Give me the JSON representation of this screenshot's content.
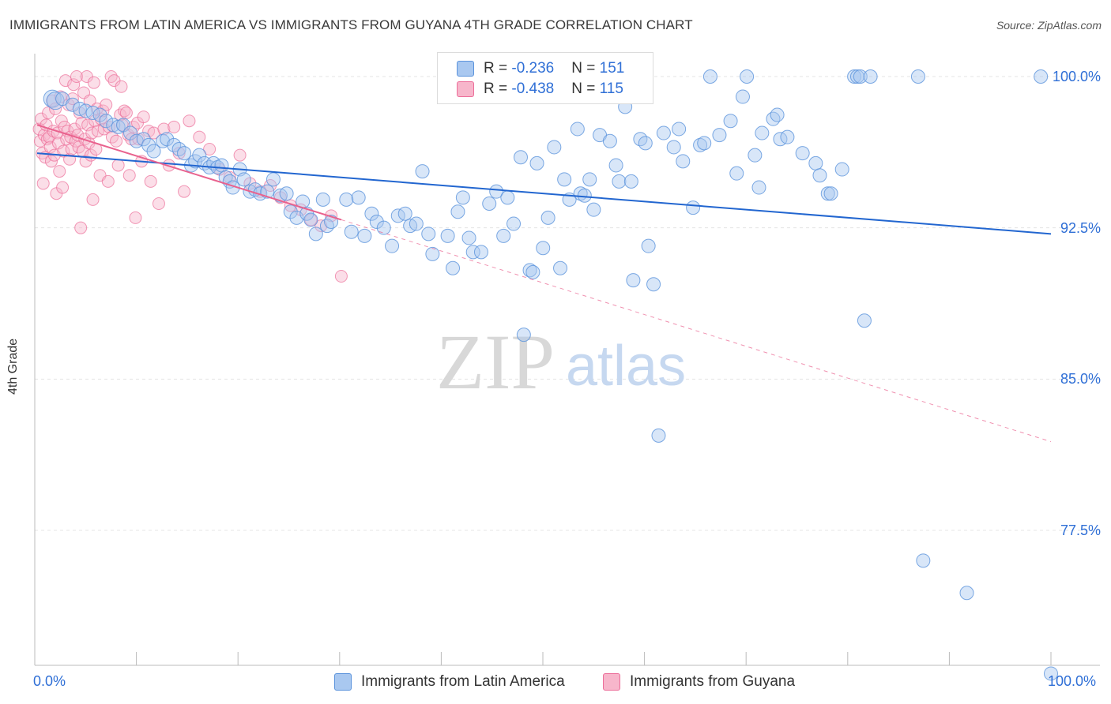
{
  "title": "IMMIGRANTS FROM LATIN AMERICA VS IMMIGRANTS FROM GUYANA 4TH GRADE CORRELATION CHART",
  "source": "Source: ZipAtlas.com",
  "watermark": {
    "zip": "ZIP",
    "atlas": "atlas"
  },
  "legend": {
    "blue": {
      "r_label": "R = ",
      "r_value": "-0.236",
      "n_label": "N = ",
      "n_value": "151"
    },
    "pink": {
      "r_label": "R = ",
      "r_value": "-0.438",
      "n_label": "N = ",
      "n_value": "115"
    }
  },
  "bottom_legend": {
    "blue": "Immigrants from Latin America",
    "pink": "Immigrants from Guyana"
  },
  "colors": {
    "blue_fill": "#a9c8f0",
    "blue_stroke": "#5b93dc",
    "blue_line": "#2266d0",
    "pink_fill": "#f7b6cb",
    "pink_stroke": "#ec6d99",
    "pink_line": "#e9628e",
    "axis_text": "#2f6fd6",
    "grid": "#e4e4e4"
  },
  "chart_data": {
    "type": "scatter",
    "xlabel": "",
    "ylabel": "4th Grade",
    "xlim": [
      0,
      100
    ],
    "ylim": [
      70.5,
      101.5
    ],
    "x_tick_labels": {
      "left": "0.0%",
      "right": "100.0%"
    },
    "y_ticks": [
      {
        "value": 100.0,
        "label": "100.0%"
      },
      {
        "value": 92.5,
        "label": "92.5%"
      },
      {
        "value": 85.0,
        "label": "85.0%"
      },
      {
        "value": 77.5,
        "label": "77.5%"
      }
    ],
    "series": [
      {
        "name": "Immigrants from Latin America",
        "r": -0.236,
        "n": 151,
        "trend": {
          "x0": 0,
          "y0": 96.2,
          "x1": 100,
          "y1": 92.2
        },
        "points": [
          [
            1.5,
            98.9
          ],
          [
            1.8,
            98.8
          ],
          [
            2.5,
            98.9
          ],
          [
            3.5,
            98.6
          ],
          [
            4.2,
            98.4
          ],
          [
            4.8,
            98.3
          ],
          [
            5.5,
            98.2
          ],
          [
            6.2,
            98.1
          ],
          [
            6.8,
            97.8
          ],
          [
            7.5,
            97.6
          ],
          [
            8.0,
            97.5
          ],
          [
            8.5,
            97.6
          ],
          [
            9.2,
            97.2
          ],
          [
            9.8,
            96.8
          ],
          [
            10.5,
            96.9
          ],
          [
            11.0,
            96.6
          ],
          [
            11.5,
            96.3
          ],
          [
            12.4,
            96.8
          ],
          [
            12.8,
            96.9
          ],
          [
            13.5,
            96.6
          ],
          [
            14.0,
            96.4
          ],
          [
            14.5,
            96.2
          ],
          [
            15.2,
            95.6
          ],
          [
            15.6,
            95.8
          ],
          [
            16.0,
            96.1
          ],
          [
            16.5,
            95.7
          ],
          [
            17.0,
            95.5
          ],
          [
            17.4,
            95.7
          ],
          [
            17.8,
            95.5
          ],
          [
            18.2,
            95.6
          ],
          [
            18.6,
            95.0
          ],
          [
            19.0,
            94.8
          ],
          [
            19.3,
            94.5
          ],
          [
            20.0,
            95.4
          ],
          [
            20.4,
            94.9
          ],
          [
            21.0,
            94.3
          ],
          [
            21.5,
            94.4
          ],
          [
            22.0,
            94.2
          ],
          [
            22.7,
            94.3
          ],
          [
            23.3,
            94.9
          ],
          [
            24.0,
            94.1
          ],
          [
            24.6,
            94.2
          ],
          [
            25.0,
            93.3
          ],
          [
            25.6,
            93.0
          ],
          [
            26.2,
            93.8
          ],
          [
            26.6,
            93.2
          ],
          [
            27.0,
            92.9
          ],
          [
            27.5,
            92.2
          ],
          [
            28.2,
            93.9
          ],
          [
            28.6,
            92.6
          ],
          [
            29.0,
            92.8
          ],
          [
            30.5,
            93.9
          ],
          [
            31.0,
            92.3
          ],
          [
            31.7,
            94.0
          ],
          [
            32.3,
            92.1
          ],
          [
            33.0,
            93.2
          ],
          [
            33.5,
            92.8
          ],
          [
            34.2,
            92.5
          ],
          [
            35.0,
            91.6
          ],
          [
            35.6,
            93.1
          ],
          [
            36.3,
            93.2
          ],
          [
            36.8,
            92.6
          ],
          [
            37.4,
            92.7
          ],
          [
            38.0,
            95.3
          ],
          [
            38.6,
            92.2
          ],
          [
            39.0,
            91.2
          ],
          [
            40.5,
            92.1
          ],
          [
            41.0,
            90.5
          ],
          [
            41.5,
            93.3
          ],
          [
            42.0,
            94.0
          ],
          [
            42.6,
            92.0
          ],
          [
            43.0,
            91.3
          ],
          [
            43.8,
            91.3
          ],
          [
            44.6,
            93.7
          ],
          [
            45.3,
            94.3
          ],
          [
            46.0,
            92.1
          ],
          [
            46.4,
            94.0
          ],
          [
            47.0,
            92.7
          ],
          [
            47.7,
            96.0
          ],
          [
            48.0,
            87.2
          ],
          [
            48.6,
            90.4
          ],
          [
            48.9,
            90.3
          ],
          [
            49.3,
            95.7
          ],
          [
            49.9,
            91.5
          ],
          [
            50.4,
            93.0
          ],
          [
            51.0,
            96.5
          ],
          [
            51.6,
            90.5
          ],
          [
            52.0,
            94.9
          ],
          [
            52.5,
            93.9
          ],
          [
            53.3,
            97.4
          ],
          [
            53.6,
            94.2
          ],
          [
            54.0,
            94.1
          ],
          [
            54.5,
            94.9
          ],
          [
            54.9,
            93.4
          ],
          [
            55.5,
            97.1
          ],
          [
            56.5,
            96.8
          ],
          [
            57.1,
            95.6
          ],
          [
            57.4,
            94.8
          ],
          [
            58.0,
            98.5
          ],
          [
            58.6,
            94.8
          ],
          [
            58.8,
            89.9
          ],
          [
            59.5,
            96.9
          ],
          [
            60.0,
            96.7
          ],
          [
            60.3,
            91.6
          ],
          [
            60.8,
            89.7
          ],
          [
            61.3,
            82.2
          ],
          [
            61.8,
            97.2
          ],
          [
            62.8,
            96.5
          ],
          [
            63.3,
            97.4
          ],
          [
            63.7,
            95.8
          ],
          [
            64.7,
            93.5
          ],
          [
            65.4,
            96.6
          ],
          [
            65.8,
            96.7
          ],
          [
            66.4,
            100.0
          ],
          [
            67.3,
            97.1
          ],
          [
            68.4,
            97.8
          ],
          [
            69.0,
            95.2
          ],
          [
            69.6,
            99.0
          ],
          [
            70.0,
            100.0
          ],
          [
            70.8,
            96.1
          ],
          [
            71.2,
            94.5
          ],
          [
            71.5,
            97.2
          ],
          [
            72.6,
            97.9
          ],
          [
            73.0,
            98.1
          ],
          [
            73.3,
            96.9
          ],
          [
            74.0,
            97.0
          ],
          [
            75.5,
            96.2
          ],
          [
            76.8,
            95.7
          ],
          [
            77.2,
            95.1
          ],
          [
            78.0,
            94.2
          ],
          [
            78.3,
            94.2
          ],
          [
            79.4,
            95.4
          ],
          [
            80.6,
            100.0
          ],
          [
            80.9,
            100.0
          ],
          [
            81.2,
            100.0
          ],
          [
            81.6,
            87.9
          ],
          [
            82.2,
            100.0
          ],
          [
            86.9,
            100.0
          ],
          [
            87.4,
            76.0
          ],
          [
            91.7,
            74.4
          ],
          [
            99.0,
            100.0
          ],
          [
            100.0,
            70.4
          ]
        ]
      },
      {
        "name": "Immigrants from Guyana",
        "r": -0.438,
        "n": 115,
        "trend": {
          "x0": 0,
          "y0": 97.6,
          "x1": 30,
          "y1": 92.9,
          "dash_x1": 100,
          "dash_y1": 81.9
        },
        "points": [
          [
            0.2,
            97.4
          ],
          [
            0.3,
            96.8
          ],
          [
            0.4,
            97.9
          ],
          [
            0.5,
            96.2
          ],
          [
            0.6,
            94.7
          ],
          [
            0.7,
            97.1
          ],
          [
            0.8,
            96.0
          ],
          [
            0.9,
            97.6
          ],
          [
            1.0,
            96.9
          ],
          [
            1.1,
            98.2
          ],
          [
            1.2,
            97.0
          ],
          [
            1.3,
            96.5
          ],
          [
            1.4,
            95.8
          ],
          [
            1.5,
            98.8
          ],
          [
            1.6,
            97.3
          ],
          [
            1.7,
            96.1
          ],
          [
            1.8,
            98.4
          ],
          [
            1.9,
            94.2
          ],
          [
            2.0,
            97.2
          ],
          [
            2.1,
            96.7
          ],
          [
            2.2,
            95.3
          ],
          [
            2.3,
            99.0
          ],
          [
            2.4,
            97.8
          ],
          [
            2.5,
            94.5
          ],
          [
            2.6,
            96.3
          ],
          [
            2.7,
            97.5
          ],
          [
            2.8,
            99.8
          ],
          [
            2.9,
            96.9
          ],
          [
            3.0,
            97.3
          ],
          [
            3.1,
            98.6
          ],
          [
            3.2,
            95.9
          ],
          [
            3.3,
            97.0
          ],
          [
            3.4,
            96.4
          ],
          [
            3.5,
            98.9
          ],
          [
            3.6,
            99.6
          ],
          [
            3.7,
            97.4
          ],
          [
            3.8,
            96.8
          ],
          [
            3.9,
            100.0
          ],
          [
            4.0,
            97.1
          ],
          [
            4.1,
            96.5
          ],
          [
            4.2,
            98.2
          ],
          [
            4.3,
            92.5
          ],
          [
            4.4,
            97.7
          ],
          [
            4.5,
            96.3
          ],
          [
            4.6,
            99.2
          ],
          [
            4.7,
            96.9
          ],
          [
            4.8,
            95.8
          ],
          [
            4.9,
            100.0
          ],
          [
            5.0,
            97.6
          ],
          [
            5.1,
            96.7
          ],
          [
            5.2,
            98.8
          ],
          [
            5.3,
            96.1
          ],
          [
            5.4,
            97.2
          ],
          [
            5.5,
            93.9
          ],
          [
            5.6,
            99.7
          ],
          [
            5.7,
            97.8
          ],
          [
            5.8,
            96.4
          ],
          [
            5.9,
            98.4
          ],
          [
            6.0,
            97.3
          ],
          [
            6.2,
            95.1
          ],
          [
            6.3,
            97.9
          ],
          [
            6.5,
            98.3
          ],
          [
            6.6,
            97.4
          ],
          [
            6.8,
            98.6
          ],
          [
            7.0,
            94.8
          ],
          [
            7.1,
            97.5
          ],
          [
            7.3,
            100.0
          ],
          [
            7.4,
            97.0
          ],
          [
            7.6,
            99.8
          ],
          [
            7.8,
            96.8
          ],
          [
            8.0,
            95.6
          ],
          [
            8.2,
            98.1
          ],
          [
            8.3,
            99.5
          ],
          [
            8.4,
            97.6
          ],
          [
            8.6,
            98.3
          ],
          [
            8.8,
            98.2
          ],
          [
            9.0,
            97.1
          ],
          [
            9.1,
            95.1
          ],
          [
            9.3,
            96.9
          ],
          [
            9.5,
            97.5
          ],
          [
            9.7,
            93.0
          ],
          [
            9.9,
            97.7
          ],
          [
            10.0,
            96.9
          ],
          [
            10.3,
            95.8
          ],
          [
            10.5,
            98.0
          ],
          [
            11.0,
            97.3
          ],
          [
            11.2,
            94.8
          ],
          [
            11.5,
            97.2
          ],
          [
            12.0,
            93.7
          ],
          [
            12.5,
            97.4
          ],
          [
            13.0,
            95.6
          ],
          [
            13.5,
            97.5
          ],
          [
            14.0,
            96.2
          ],
          [
            14.5,
            94.3
          ],
          [
            15.0,
            97.8
          ],
          [
            16.0,
            97.0
          ],
          [
            17.0,
            96.4
          ],
          [
            18.0,
            95.4
          ],
          [
            19.0,
            95.0
          ],
          [
            20.0,
            96.1
          ],
          [
            21.0,
            94.7
          ],
          [
            22.0,
            94.3
          ],
          [
            23.0,
            94.6
          ],
          [
            24.0,
            94.0
          ],
          [
            25.0,
            93.6
          ],
          [
            26.0,
            93.4
          ],
          [
            27.0,
            92.9
          ],
          [
            28.0,
            92.6
          ],
          [
            29.0,
            93.1
          ],
          [
            30.0,
            90.1
          ]
        ]
      }
    ]
  }
}
